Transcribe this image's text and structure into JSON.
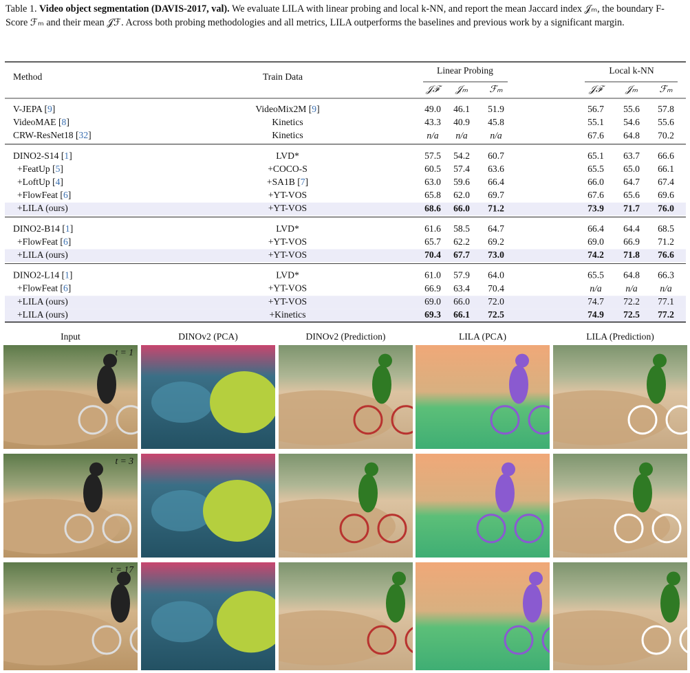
{
  "caption": {
    "label": "Table 1.",
    "title": "Video object segmentation (DAVIS-2017, val).",
    "text": "We evaluate LILA with linear probing and local k-NN, and report the mean Jaccard index 𝒥ₘ, the boundary F-Score ℱₘ and their mean 𝒥ℱ. Across both probing methodologies and all metrics, LILA outperforms the baselines and previous work by a significant margin."
  },
  "table": {
    "headers": {
      "method": "Method",
      "train": "Train Data",
      "groups": [
        "Linear Probing",
        "Local k-NN"
      ],
      "metrics": [
        "𝒥ℱ",
        "𝒥ₘ",
        "ℱₘ",
        "𝒥ℱ",
        "𝒥ₘ",
        "ℱₘ"
      ]
    },
    "groups": [
      {
        "rows": [
          {
            "method": [
              "V-JEPA [",
              "9",
              "]"
            ],
            "train": [
              "VideoMix2M [",
              "9",
              "]"
            ],
            "values": [
              "49.0",
              "46.1",
              "51.9",
              "56.7",
              "55.6",
              "57.8"
            ]
          },
          {
            "method": [
              "VideoMAE [",
              "8",
              "]"
            ],
            "train": [
              "Kinetics"
            ],
            "values": [
              "43.3",
              "40.9",
              "45.8",
              "55.1",
              "54.6",
              "55.6"
            ]
          },
          {
            "method": [
              "CRW-ResNet18 [",
              "32",
              "]"
            ],
            "train": [
              "Kinetics"
            ],
            "values": [
              "n/a",
              "n/a",
              "n/a",
              "67.6",
              "64.8",
              "70.2"
            ]
          }
        ]
      },
      {
        "rows": [
          {
            "method": [
              "DINO2-S14 [",
              "1",
              "]"
            ],
            "train": [
              "LVD*"
            ],
            "values": [
              "57.5",
              "54.2",
              "60.7",
              "65.1",
              "63.7",
              "66.6"
            ]
          },
          {
            "method": [
              "+FeatUp [",
              "5",
              "]"
            ],
            "train": [
              "+COCO-S"
            ],
            "values": [
              "60.5",
              "57.4",
              "63.6",
              "65.5",
              "65.0",
              "66.1"
            ]
          },
          {
            "method": [
              "+LoftUp [",
              "4",
              "]"
            ],
            "train": [
              "+SA1B [",
              "7",
              "]"
            ],
            "values": [
              "63.0",
              "59.6",
              "66.4",
              "66.0",
              "64.7",
              "67.4"
            ]
          },
          {
            "method": [
              "+FlowFeat [",
              "6",
              "]"
            ],
            "train": [
              "+YT-VOS"
            ],
            "values": [
              "65.8",
              "62.0",
              "69.7",
              "67.6",
              "65.6",
              "69.6"
            ]
          },
          {
            "method": [
              "+LILA (ours)"
            ],
            "train": [
              "+YT-VOS"
            ],
            "values": [
              "68.6",
              "66.0",
              "71.2",
              "73.9",
              "71.7",
              "76.0"
            ],
            "highlight": true,
            "bold": true
          }
        ]
      },
      {
        "rows": [
          {
            "method": [
              "DINO2-B14 [",
              "1",
              "]"
            ],
            "train": [
              "LVD*"
            ],
            "values": [
              "61.6",
              "58.5",
              "64.7",
              "66.4",
              "64.4",
              "68.5"
            ]
          },
          {
            "method": [
              "+FlowFeat [",
              "6",
              "]"
            ],
            "train": [
              "+YT-VOS"
            ],
            "values": [
              "65.7",
              "62.2",
              "69.2",
              "69.0",
              "66.9",
              "71.2"
            ]
          },
          {
            "method": [
              "+LILA (ours)"
            ],
            "train": [
              "+YT-VOS"
            ],
            "values": [
              "70.4",
              "67.7",
              "73.0",
              "74.2",
              "71.8",
              "76.6"
            ],
            "highlight": true,
            "bold": true
          }
        ]
      },
      {
        "rows": [
          {
            "method": [
              "DINO2-L14 [",
              "1",
              "]"
            ],
            "train": [
              "LVD*"
            ],
            "values": [
              "61.0",
              "57.9",
              "64.0",
              "65.5",
              "64.8",
              "66.3"
            ]
          },
          {
            "method": [
              "+FlowFeat [",
              "6",
              "]"
            ],
            "train": [
              "+YT-VOS"
            ],
            "values": [
              "66.9",
              "63.4",
              "70.4",
              "n/a",
              "n/a",
              "n/a"
            ]
          },
          {
            "method": [
              "+LILA (ours)"
            ],
            "train": [
              "+YT-VOS"
            ],
            "values": [
              "69.0",
              "66.0",
              "72.0",
              "74.7",
              "72.2",
              "77.1"
            ],
            "highlight": true
          },
          {
            "method": [
              "+LILA (ours)"
            ],
            "train": [
              "+Kinetics"
            ],
            "values": [
              "69.3",
              "66.1",
              "72.5",
              "74.9",
              "72.5",
              "77.2"
            ],
            "highlight": true,
            "bold": true
          }
        ]
      }
    ]
  },
  "figure": {
    "columns": [
      "Input",
      "DINOv2 (PCA)",
      "DINOv2 (Prediction)",
      "LILA (PCA)",
      "LILA (Prediction)"
    ],
    "frames": [
      "t = 1",
      "t = 3",
      "t = 17"
    ]
  }
}
